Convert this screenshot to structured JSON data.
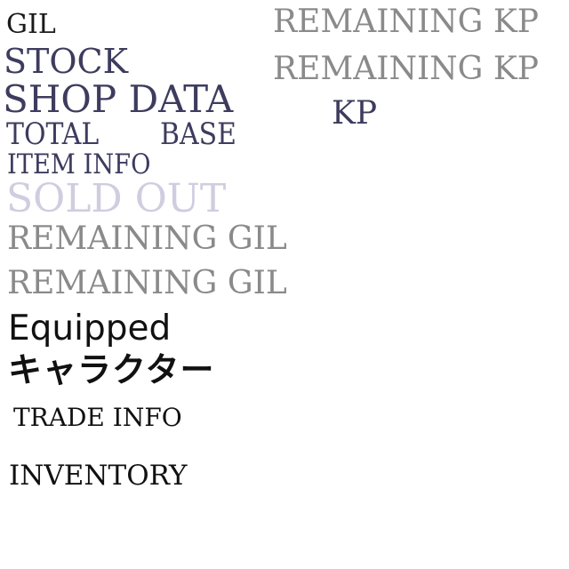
{
  "labels": {
    "gil": "GIL",
    "stock": "STOCK",
    "shop_data": "SHOP DATA",
    "total": "TOTAL",
    "base": "BASE",
    "item_info": "ITEM INFO",
    "sold_out": "SOLD OUT",
    "remaining_gil_1": "REMAINING GIL",
    "remaining_gil_2": "REMAINING GIL",
    "equipped": "Equipped",
    "character": "キャラクター",
    "trade_info": "TRADE INFO",
    "inventory": "INVENTORY",
    "remaining_kp_1": "REMAINING KP",
    "remaining_kp_2": "REMAINING KP",
    "kp": "KP"
  },
  "colors": {
    "navy": "#3d3c5e",
    "gray": "#8a8a8a",
    "lavender": "#cfcde0",
    "black": "#111111"
  }
}
